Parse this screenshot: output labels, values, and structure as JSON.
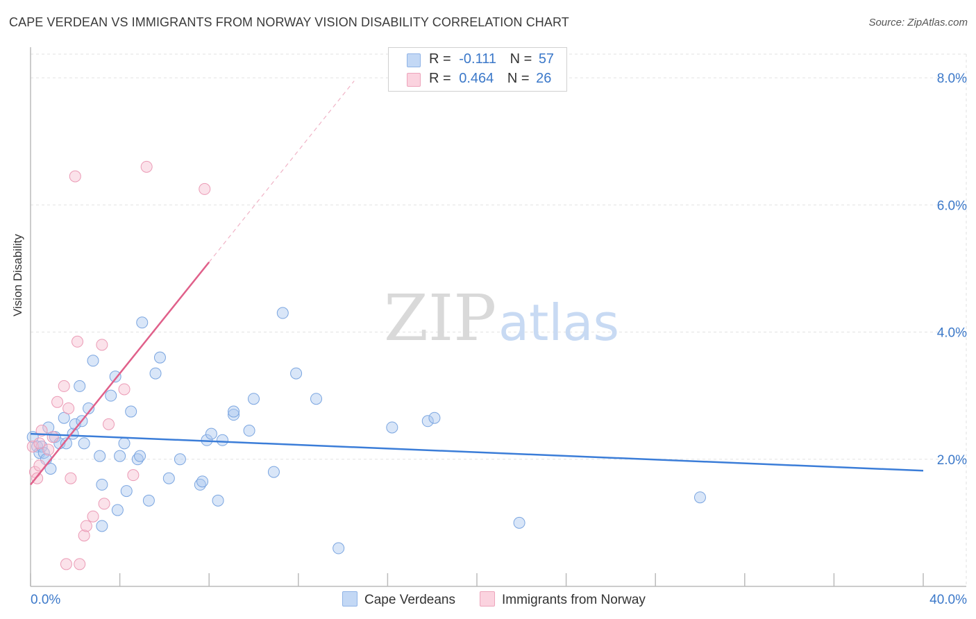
{
  "title": "CAPE VERDEAN VS IMMIGRANTS FROM NORWAY VISION DISABILITY CORRELATION CHART",
  "source": "Source: ZipAtlas.com",
  "watermark": {
    "zip": "ZIP",
    "atlas": "atlas"
  },
  "legend": {
    "r_label": "R =",
    "n_label": "N =",
    "rows": [
      {
        "r": "-0.111",
        "n": "57",
        "color": "#aac8f0"
      },
      {
        "r": "0.464",
        "n": "26",
        "color": "#f7bfd0"
      }
    ]
  },
  "bottom_legend": [
    {
      "label": "Cape Verdeans",
      "color": "#aac8f0"
    },
    {
      "label": "Immigrants from Norway",
      "color": "#f7bfd0"
    }
  ],
  "chart_data": {
    "type": "scatter",
    "title": "CAPE VERDEAN VS IMMIGRANTS FROM NORWAY VISION DISABILITY CORRELATION CHART",
    "xlabel": "",
    "ylabel": "Vision Disability",
    "xlim": [
      0,
      40
    ],
    "ylim": [
      0,
      8.35
    ],
    "x_tick_labels": [
      "0.0%",
      "40.0%"
    ],
    "y_ticks": [
      2,
      4,
      6,
      8
    ],
    "y_tick_labels": [
      "2.0%",
      "4.0%",
      "6.0%",
      "8.0%"
    ],
    "grid": true,
    "series": [
      {
        "name": "Cape Verdeans",
        "color": "#3b7dd8",
        "fill": "#aac8f0",
        "points": [
          [
            0.1,
            2.35
          ],
          [
            0.3,
            2.2
          ],
          [
            0.4,
            2.1
          ],
          [
            0.5,
            2.2
          ],
          [
            0.6,
            2.1
          ],
          [
            0.7,
            2.0
          ],
          [
            0.8,
            2.5
          ],
          [
            0.9,
            1.85
          ],
          [
            1.1,
            2.35
          ],
          [
            1.3,
            2.25
          ],
          [
            1.5,
            2.65
          ],
          [
            1.6,
            2.25
          ],
          [
            1.9,
            2.4
          ],
          [
            2.0,
            2.55
          ],
          [
            2.2,
            3.15
          ],
          [
            2.3,
            2.6
          ],
          [
            2.4,
            2.25
          ],
          [
            2.6,
            2.8
          ],
          [
            2.8,
            3.55
          ],
          [
            3.1,
            2.05
          ],
          [
            3.2,
            1.6
          ],
          [
            3.2,
            0.95
          ],
          [
            3.6,
            3.0
          ],
          [
            3.8,
            3.3
          ],
          [
            3.9,
            1.2
          ],
          [
            4.0,
            2.05
          ],
          [
            4.2,
            2.25
          ],
          [
            4.3,
            1.5
          ],
          [
            4.5,
            2.75
          ],
          [
            4.8,
            2.0
          ],
          [
            4.9,
            2.05
          ],
          [
            5.0,
            4.15
          ],
          [
            5.3,
            1.35
          ],
          [
            5.6,
            3.35
          ],
          [
            5.8,
            3.6
          ],
          [
            6.2,
            1.7
          ],
          [
            6.7,
            2.0
          ],
          [
            7.6,
            1.6
          ],
          [
            7.7,
            1.65
          ],
          [
            7.9,
            2.3
          ],
          [
            8.1,
            2.4
          ],
          [
            8.4,
            1.35
          ],
          [
            8.6,
            2.3
          ],
          [
            9.1,
            2.7
          ],
          [
            9.1,
            2.75
          ],
          [
            9.8,
            2.45
          ],
          [
            10.0,
            2.95
          ],
          [
            10.9,
            1.8
          ],
          [
            11.3,
            4.3
          ],
          [
            11.9,
            3.35
          ],
          [
            12.8,
            2.95
          ],
          [
            13.8,
            0.6
          ],
          [
            16.2,
            2.5
          ],
          [
            17.8,
            2.6
          ],
          [
            18.1,
            2.65
          ],
          [
            21.9,
            1.0
          ],
          [
            30.0,
            1.4
          ]
        ],
        "trend": {
          "x": [
            0,
            40
          ],
          "y": [
            2.4,
            1.82
          ]
        }
      },
      {
        "name": "Immigrants from Norway",
        "color": "#e0608a",
        "fill": "#f7bfd0",
        "points": [
          [
            0.1,
            2.2
          ],
          [
            0.2,
            1.8
          ],
          [
            0.3,
            1.7
          ],
          [
            0.4,
            2.25
          ],
          [
            0.4,
            1.9
          ],
          [
            0.5,
            2.45
          ],
          [
            0.8,
            2.15
          ],
          [
            1.0,
            2.35
          ],
          [
            1.2,
            2.9
          ],
          [
            1.5,
            3.15
          ],
          [
            1.7,
            2.8
          ],
          [
            1.8,
            1.7
          ],
          [
            2.0,
            6.45
          ],
          [
            2.2,
            0.35
          ],
          [
            2.4,
            0.8
          ],
          [
            2.5,
            0.95
          ],
          [
            2.8,
            1.1
          ],
          [
            3.2,
            3.8
          ],
          [
            3.3,
            1.3
          ],
          [
            3.5,
            2.55
          ],
          [
            4.2,
            3.1
          ],
          [
            4.6,
            1.75
          ],
          [
            5.2,
            6.6
          ],
          [
            7.8,
            6.25
          ],
          [
            2.1,
            3.85
          ],
          [
            1.6,
            0.35
          ]
        ],
        "trend": {
          "x": [
            0,
            8
          ],
          "y": [
            1.6,
            5.1
          ]
        },
        "trend_extension": {
          "x": [
            8,
            14.5
          ],
          "y": [
            5.1,
            7.95
          ]
        }
      }
    ]
  }
}
